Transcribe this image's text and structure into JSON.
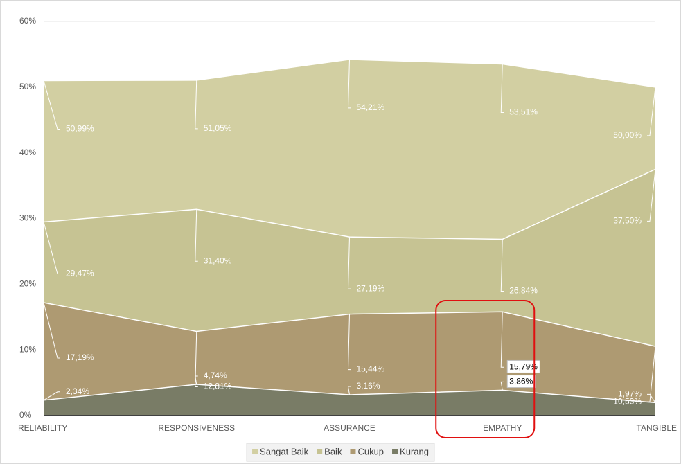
{
  "chart_data": {
    "type": "area",
    "categories": [
      "RELIABILITY",
      "RESPONSIVENESS",
      "ASSURANCE",
      "EMPATHY",
      "TANGIBLE"
    ],
    "series": [
      {
        "name": "Sangat Baik",
        "color": "#d2cfa2",
        "values": [
          50.99,
          51.05,
          54.21,
          53.51,
          50.0
        ],
        "value_labels": [
          "50,99%",
          "51,05%",
          "54,21%",
          "53,51%",
          "50,00%"
        ]
      },
      {
        "name": "Baik",
        "color": "#c6c393",
        "values": [
          29.47,
          31.4,
          27.19,
          26.84,
          37.5
        ],
        "value_labels": [
          "29,47%",
          "31,40%",
          "27,19%",
          "26,84%",
          "37,50%"
        ]
      },
      {
        "name": "Cukup",
        "color": "#ae9a72",
        "values": [
          17.19,
          12.81,
          15.44,
          15.79,
          10.53
        ],
        "value_labels": [
          "17,19%",
          "12,81%",
          "15,44%",
          "15,79%",
          "10,53%"
        ]
      },
      {
        "name": "Kurang",
        "color": "#797c66",
        "values": [
          2.34,
          4.74,
          3.16,
          3.86,
          1.97
        ],
        "value_labels": [
          "2,34%",
          "4,74%",
          "3,16%",
          "3,86%",
          "1,97%"
        ]
      }
    ],
    "ylim": [
      0,
      60
    ],
    "yticks": [
      {
        "value": 0,
        "label": "0%"
      },
      {
        "value": 10,
        "label": "10%"
      },
      {
        "value": 20,
        "label": "20%"
      },
      {
        "value": 30,
        "label": "30%"
      },
      {
        "value": 40,
        "label": "40%"
      },
      {
        "value": 50,
        "label": "50%"
      },
      {
        "value": 60,
        "label": "60%"
      }
    ],
    "grid": true,
    "legend": "bottom",
    "highlight_index": 3
  }
}
